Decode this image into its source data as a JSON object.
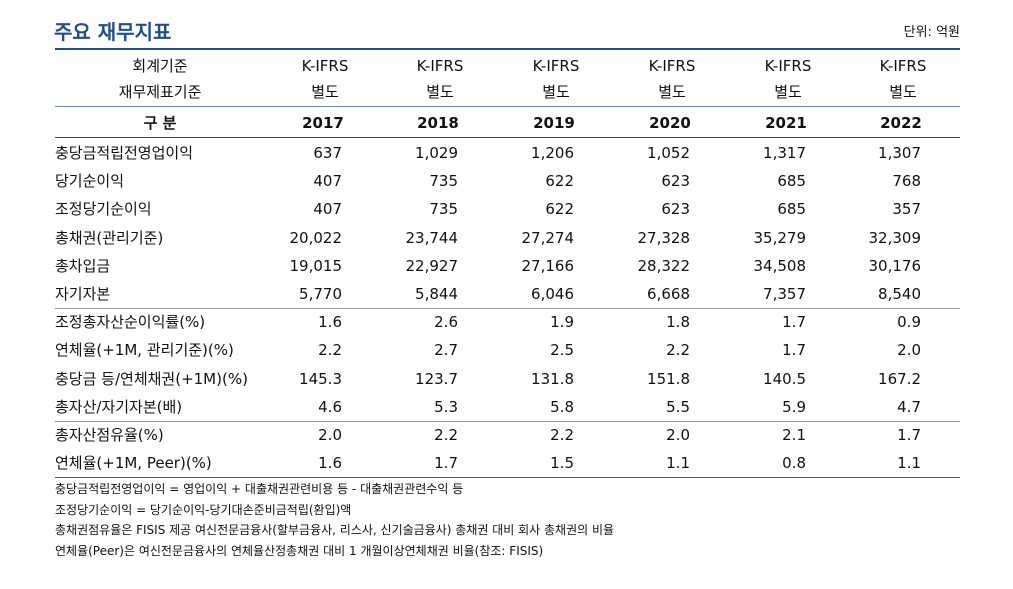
{
  "header": {
    "title": "주요 재무지표",
    "unit": "단위: 억원"
  },
  "table": {
    "header_rows": [
      [
        "회계기준",
        "K-IFRS",
        "K-IFRS",
        "K-IFRS",
        "K-IFRS",
        "K-IFRS",
        "K-IFRS"
      ],
      [
        "재무제표기준",
        "별도",
        "별도",
        "별도",
        "별도",
        "별도",
        "별도"
      ]
    ],
    "column_header": [
      "구 분",
      "2017",
      "2018",
      "2019",
      "2020",
      "2021",
      "2022"
    ],
    "groups": [
      [
        [
          "충당금적립전영업이익",
          "637",
          "1,029",
          "1,206",
          "1,052",
          "1,317",
          "1,307"
        ],
        [
          "당기순이익",
          "407",
          "735",
          "622",
          "623",
          "685",
          "768"
        ],
        [
          "조정당기순이익",
          "407",
          "735",
          "622",
          "623",
          "685",
          "357"
        ],
        [
          "총채권(관리기준)",
          "20,022",
          "23,744",
          "27,274",
          "27,328",
          "35,279",
          "32,309"
        ],
        [
          "총차입금",
          "19,015",
          "22,927",
          "27,166",
          "28,322",
          "34,508",
          "30,176"
        ],
        [
          "자기자본",
          "5,770",
          "5,844",
          "6,046",
          "6,668",
          "7,357",
          "8,540"
        ]
      ],
      [
        [
          "조정총자산순이익률(%)",
          "1.6",
          "2.6",
          "1.9",
          "1.8",
          "1.7",
          "0.9"
        ],
        [
          "연체율(+1M, 관리기준)(%)",
          "2.2",
          "2.7",
          "2.5",
          "2.2",
          "1.7",
          "2.0"
        ],
        [
          "충당금 등/연체채권(+1M)(%)",
          "145.3",
          "123.7",
          "131.8",
          "151.8",
          "140.5",
          "167.2"
        ],
        [
          "총자산/자기자본(배)",
          "4.6",
          "5.3",
          "5.8",
          "5.5",
          "5.9",
          "4.7"
        ]
      ],
      [
        [
          "총자산점유율(%)",
          "2.0",
          "2.2",
          "2.2",
          "2.0",
          "2.1",
          "1.7"
        ],
        [
          "연체율(+1M, Peer)(%)",
          "1.6",
          "1.7",
          "1.5",
          "1.1",
          "0.8",
          "1.1"
        ]
      ]
    ]
  },
  "notes": [
    "충당금적립전영업이익 = 영업이익 + 대출채권관련비용 등 - 대출채권관련수익 등",
    "조정당기순이익 = 당기순이익-당기대손준비금적립(환입)액",
    "총채권점유율은 FISIS 제공 여신전문금융사(할부금융사, 리스사, 신기술금융사) 총채권 대비 회사 총채권의 비율",
    "연체율(Peer)은 여신전문금융사의 연체율산정총채권 대비 1 개월이상연체채권 비율(참조: FISIS)"
  ]
}
